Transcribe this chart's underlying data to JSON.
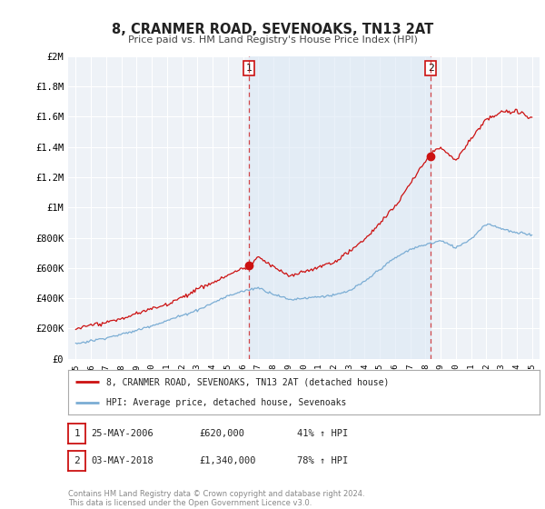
{
  "title": "8, CRANMER ROAD, SEVENOAKS, TN13 2AT",
  "subtitle": "Price paid vs. HM Land Registry's House Price Index (HPI)",
  "ylim": [
    0,
    2000000
  ],
  "yticks": [
    0,
    200000,
    400000,
    600000,
    800000,
    1000000,
    1200000,
    1400000,
    1600000,
    1800000,
    2000000
  ],
  "ytick_labels": [
    "£0",
    "£200K",
    "£400K",
    "£600K",
    "£800K",
    "£1M",
    "£1.2M",
    "£1.4M",
    "£1.6M",
    "£1.8M",
    "£2M"
  ],
  "background_color": "#ffffff",
  "plot_bg_color": "#eef2f7",
  "plot_bg_color2": "#e8eef5",
  "grid_color": "#ffffff",
  "hpi_color": "#7badd4",
  "price_color": "#cc1111",
  "shade_color": "#dce8f5",
  "sale1_x": 2006.38,
  "sale1_y": 620000,
  "sale1_label": "1",
  "sale1_date": "25-MAY-2006",
  "sale1_price": "£620,000",
  "sale1_hpi": "41% ↑ HPI",
  "sale2_x": 2018.34,
  "sale2_y": 1340000,
  "sale2_label": "2",
  "sale2_date": "03-MAY-2018",
  "sale2_price": "£1,340,000",
  "sale2_hpi": "78% ↑ HPI",
  "legend_line1": "8, CRANMER ROAD, SEVENOAKS, TN13 2AT (detached house)",
  "legend_line2": "HPI: Average price, detached house, Sevenoaks",
  "footnote": "Contains HM Land Registry data © Crown copyright and database right 2024.\nThis data is licensed under the Open Government Licence v3.0.",
  "xlim_start": 1994.5,
  "xlim_end": 2025.5
}
